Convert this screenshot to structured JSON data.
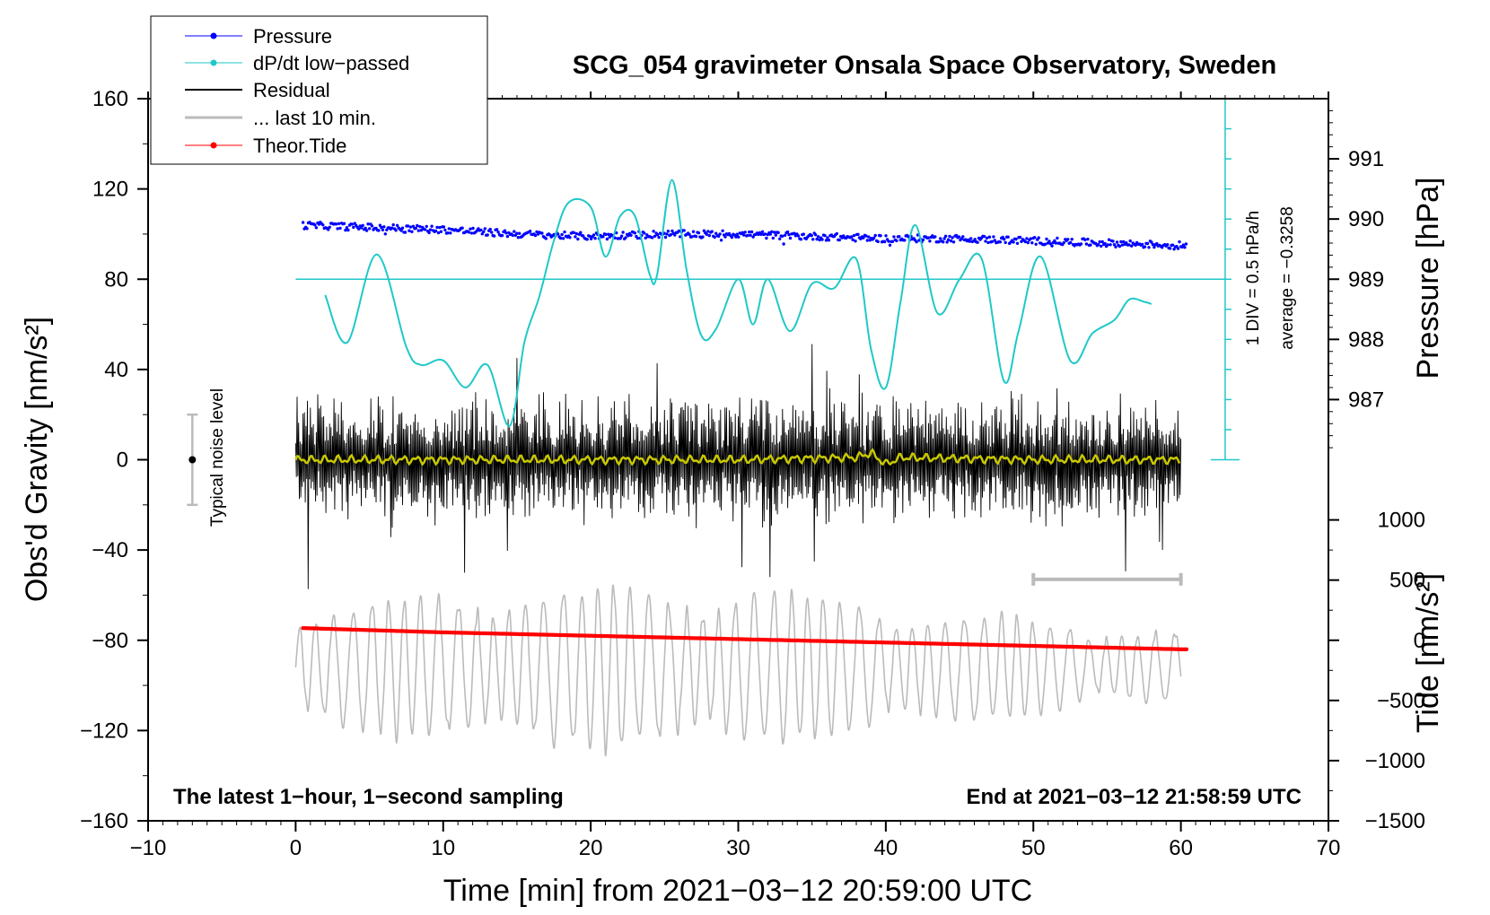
{
  "chart_data": {
    "type": "line",
    "title": "SCG_054 gravimeter Onsala Space Observatory, Sweden",
    "xlabel": "Time [min] from 2021−03−12 20:59:00 UTC",
    "ylabel_left": "Obs'd Gravity [nm/s²]",
    "ylabel_right_top": "Pressure [hPa]",
    "ylabel_right_bottom": "Tide [nm/s²]",
    "xlim": [
      -10,
      70
    ],
    "ylim": [
      -160,
      160
    ],
    "x_ticks": [
      "−10",
      "0",
      "10",
      "20",
      "30",
      "40",
      "50",
      "60",
      "70"
    ],
    "x_tick_values": [
      -10,
      0,
      10,
      20,
      30,
      40,
      50,
      60,
      70
    ],
    "y_ticks": [
      "160",
      "120",
      "80",
      "40",
      "0",
      "−40",
      "−80",
      "−120",
      "−160"
    ],
    "y_tick_values": [
      160,
      120,
      80,
      40,
      0,
      -40,
      -80,
      -120,
      -160
    ],
    "pressure_axis": {
      "ticks": [
        "991",
        "990",
        "989",
        "988",
        "987"
      ],
      "tick_values": [
        991,
        990,
        989,
        988,
        987
      ],
      "g_equivalent_of_989": 80,
      "g_per_hpa": 26.667
    },
    "tide_axis": {
      "ticks": [
        "1000",
        "500",
        "0",
        "−500",
        "−1000",
        "−1500"
      ],
      "tick_values": [
        1000,
        500,
        0,
        -500,
        -1000,
        -1500
      ],
      "g_equivalent_of_0": -80,
      "g_per_nms2": 0.05333
    },
    "dpdt_scale": {
      "label": "1 DIV = 0.5 hPa/h",
      "average_label": "average = −0.3258",
      "x": 63,
      "top": 160,
      "bottom": 0,
      "divisions": 12
    },
    "noise_bar": {
      "label": "Typical noise level",
      "x": -7,
      "center": 0,
      "half_range": 20
    },
    "last10_bar": {
      "x_start": 50,
      "x_end": 60,
      "y": -53
    },
    "dpdt_reference": 80,
    "bottom_left_note": "The latest 1−hour, 1−second sampling",
    "bottom_right_note": "End at 2021−03−12 21:58:59 UTC",
    "legend": [
      {
        "label": "Pressure",
        "color": "#0000ff",
        "marker": "dot"
      },
      {
        "label": "dP/dt low−passed",
        "color": "#20c8c8",
        "marker": "dot"
      },
      {
        "label": "Residual",
        "color": "#000000",
        "marker": "line"
      },
      {
        "label": "... last 10 min.",
        "color": "#bbbbbb",
        "marker": "line"
      },
      {
        "label": "Theor.Tide",
        "color": "#ff0000",
        "marker": "dot"
      }
    ],
    "series": [
      {
        "name": "Pressure",
        "color": "#0000ff",
        "style": "dots",
        "x": [
          0,
          5,
          10,
          15,
          20,
          25,
          30,
          35,
          40,
          45,
          50,
          55,
          60
        ],
        "y": [
          104,
          103,
          102,
          100,
          99,
          100,
          100,
          99,
          98,
          98,
          97,
          96,
          95
        ],
        "spread": 1.6
      },
      {
        "name": "dP/dt low−passed",
        "color": "#20c8c8",
        "style": "line",
        "x": [
          2,
          3.5,
          5.5,
          7.5,
          8.5,
          10,
          11.5,
          13,
          14.5,
          15.5,
          16.5,
          17.5,
          18.5,
          20,
          21,
          22,
          23,
          24,
          24.5,
          25.5,
          26.5,
          27.5,
          28.5,
          30,
          31,
          32,
          33.5,
          35,
          36.5,
          38,
          39,
          40,
          41,
          42,
          43.5,
          45,
          46.5,
          48,
          49,
          50.5,
          52.5,
          54,
          55.5,
          56.5,
          57.5,
          58
        ],
        "y": [
          73,
          52,
          91,
          50,
          42,
          44,
          32,
          42,
          15,
          52,
          72,
          97,
          114,
          112,
          90,
          108,
          108,
          82,
          82,
          124,
          84,
          55,
          58,
          80,
          60,
          80,
          57,
          78,
          76,
          89,
          49,
          32,
          70,
          104,
          65,
          80,
          89,
          35,
          57,
          90,
          44,
          56,
          62,
          71,
          70,
          69
        ]
      },
      {
        "name": "Residual",
        "color": "#000000",
        "style": "noise",
        "x_start": 0,
        "x_end": 60,
        "typical_amplitude": 22,
        "max_amplitude": 60
      },
      {
        "name": "Residual (smoothed)",
        "color": "#c8c800",
        "style": "line",
        "x": [
          0,
          10,
          20,
          30,
          38,
          39,
          40,
          41,
          50,
          60
        ],
        "y": [
          0,
          0,
          0,
          0,
          1,
          3,
          -2,
          1,
          0,
          0
        ]
      },
      {
        "name": "... last 10 min.",
        "color": "#bbbbbb",
        "style": "oscillation",
        "x_start": 0,
        "x_end": 60,
        "center": -92,
        "amplitude": 22,
        "max_amplitude": 50
      },
      {
        "name": "Theor.Tide",
        "color": "#ff0000",
        "style": "dots",
        "x": [
          0,
          10,
          20,
          30,
          40,
          50,
          60
        ],
        "y": [
          -74.5,
          -76.5,
          -78,
          -79.5,
          -81,
          -82.5,
          -84
        ]
      }
    ]
  }
}
